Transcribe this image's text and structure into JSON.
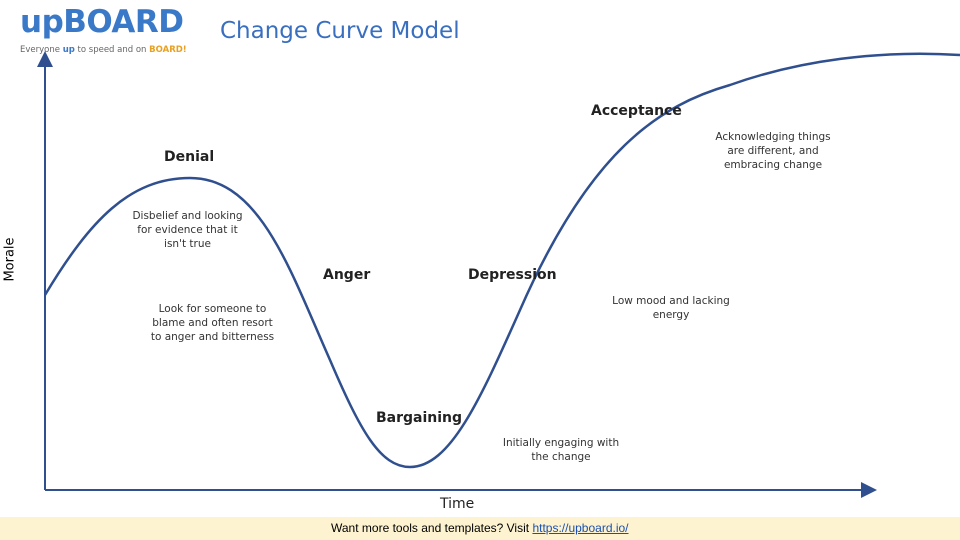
{
  "logo": {
    "up": "up",
    "board": "BOARD",
    "tagline": {
      "start": "Everyone ",
      "up": "up",
      "middle": " to speed and on ",
      "board": "BOARD!"
    }
  },
  "title": "Change Curve Model",
  "axes": {
    "y_label": "Morale",
    "x_label": "Time"
  },
  "stages": [
    {
      "name": "Denial",
      "description": "Disbelief and looking for evidence that it isn't true"
    },
    {
      "name": "Anger",
      "description": "Look for someone to blame and often resort to anger and bitterness"
    },
    {
      "name": "Bargaining",
      "description": "Initially engaging with the change"
    },
    {
      "name": "Depression",
      "description": "Low mood and lacking energy"
    },
    {
      "name": "Acceptance",
      "description": "Acknowledging things are different, and embracing change"
    }
  ],
  "footer": {
    "text": "Want more tools and templates? Visit ",
    "link": "https://upboard.io/"
  }
}
